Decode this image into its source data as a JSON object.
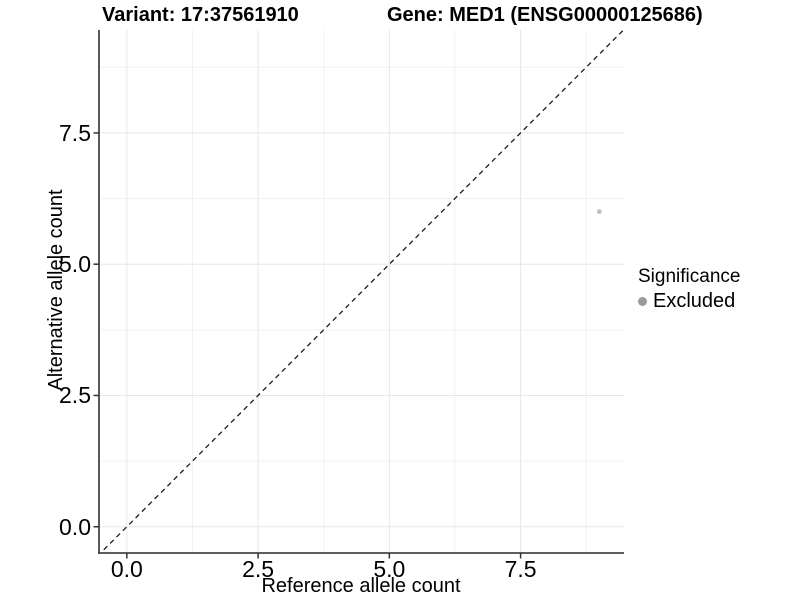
{
  "chart_data": {
    "type": "scatter",
    "titles": {
      "left": "Variant: 17:37561910",
      "right": "Gene: MED1 (ENSG00000125686)"
    },
    "xlabel": "Reference allele count",
    "ylabel": "Alternative allele count",
    "xlim": [
      -0.53,
      9.47
    ],
    "ylim": [
      -0.5,
      9.46
    ],
    "x_ticks": {
      "values": [
        0,
        2.5,
        5,
        7.5
      ],
      "labels": [
        "0.0",
        "2.5",
        "5.0",
        "7.5"
      ]
    },
    "y_ticks": {
      "values": [
        0,
        2.5,
        5,
        7.5
      ],
      "labels": [
        "0.0",
        "2.5",
        "5.0",
        "7.5"
      ]
    },
    "minor_tick_values": [
      1.25,
      3.75,
      6.25,
      8.75
    ],
    "grid": "major+minor",
    "identity_line": {
      "equation": "y = x",
      "style": "dashed",
      "color": "#1a1a1a"
    },
    "series": [
      {
        "name": "Excluded",
        "color": "#bfbfbf",
        "points": [
          {
            "x": 9,
            "y": 6
          }
        ]
      }
    ],
    "legend": {
      "title": "Significance",
      "position": "right",
      "entries": [
        {
          "label": "Excluded",
          "color": "#9b9b9b"
        }
      ]
    },
    "colors": {
      "background": "#ffffff",
      "grid_major": "#e7e7e7",
      "grid_minor": "#f2f2f2",
      "axis_line": "#474747",
      "tick_mark": "#333333",
      "text": "#000000"
    }
  }
}
